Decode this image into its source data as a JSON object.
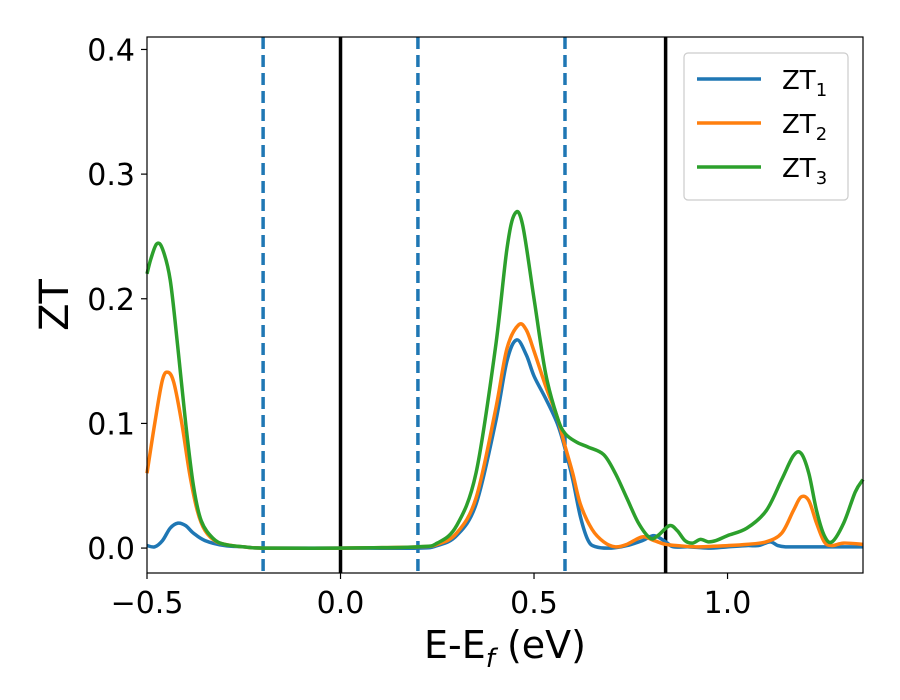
{
  "chart_data": {
    "type": "line",
    "xlabel": "E-E",
    "xlabel_subscript": "f",
    "xlabel_unit": " (eV)",
    "ylabel": "ZT",
    "xlim": [
      -0.5,
      1.35
    ],
    "ylim": [
      -0.02,
      0.41
    ],
    "xticks": [
      -0.5,
      0.0,
      0.5,
      1.0
    ],
    "xtick_labels": [
      "−0.5",
      "0.0",
      "0.5",
      "1.0"
    ],
    "yticks": [
      0.0,
      0.1,
      0.2,
      0.3,
      0.4
    ],
    "ytick_labels": [
      "0.0",
      "0.1",
      "0.2",
      "0.3",
      "0.4"
    ],
    "legend_position": "top-right",
    "grid": false,
    "vlines": [
      {
        "x": -0.2,
        "style": "dashed",
        "color": "#1f77b4"
      },
      {
        "x": 0.2,
        "style": "dashed",
        "color": "#1f77b4"
      },
      {
        "x": 0.58,
        "style": "dashed",
        "color": "#1f77b4"
      },
      {
        "x": 0.0,
        "style": "solid",
        "color": "#000000"
      },
      {
        "x": 0.84,
        "style": "solid",
        "color": "#000000"
      }
    ],
    "series": [
      {
        "name": "ZT",
        "subscript": "1",
        "color": "#1f77b4",
        "points": [
          [
            -0.5,
            0.002
          ],
          [
            -0.48,
            0.001
          ],
          [
            -0.46,
            0.006
          ],
          [
            -0.44,
            0.016
          ],
          [
            -0.42,
            0.02
          ],
          [
            -0.4,
            0.018
          ],
          [
            -0.38,
            0.012
          ],
          [
            -0.35,
            0.006
          ],
          [
            -0.3,
            0.002
          ],
          [
            -0.25,
            0.001
          ],
          [
            -0.2,
            0.0
          ],
          [
            0.0,
            0.0
          ],
          [
            0.2,
            0.0
          ],
          [
            0.25,
            0.002
          ],
          [
            0.3,
            0.01
          ],
          [
            0.35,
            0.035
          ],
          [
            0.4,
            0.1
          ],
          [
            0.43,
            0.15
          ],
          [
            0.455,
            0.167
          ],
          [
            0.48,
            0.155
          ],
          [
            0.5,
            0.138
          ],
          [
            0.53,
            0.12
          ],
          [
            0.56,
            0.1
          ],
          [
            0.58,
            0.08
          ],
          [
            0.6,
            0.055
          ],
          [
            0.62,
            0.025
          ],
          [
            0.64,
            0.006
          ],
          [
            0.66,
            0.001
          ],
          [
            0.7,
            0.0
          ],
          [
            0.74,
            0.002
          ],
          [
            0.78,
            0.006
          ],
          [
            0.81,
            0.01
          ],
          [
            0.84,
            0.005
          ],
          [
            0.86,
            0.001
          ],
          [
            0.9,
            0.001
          ],
          [
            0.95,
            0.0
          ],
          [
            1.0,
            0.001
          ],
          [
            1.05,
            0.002
          ],
          [
            1.08,
            0.002
          ],
          [
            1.11,
            0.005
          ],
          [
            1.13,
            0.002
          ],
          [
            1.15,
            0.001
          ],
          [
            1.2,
            0.001
          ],
          [
            1.25,
            0.001
          ],
          [
            1.35,
            0.001
          ]
        ]
      },
      {
        "name": "ZT",
        "subscript": "2",
        "color": "#ff7f0e",
        "points": [
          [
            -0.5,
            0.06
          ],
          [
            -0.48,
            0.1
          ],
          [
            -0.46,
            0.135
          ],
          [
            -0.445,
            0.141
          ],
          [
            -0.43,
            0.132
          ],
          [
            -0.41,
            0.1
          ],
          [
            -0.39,
            0.06
          ],
          [
            -0.37,
            0.03
          ],
          [
            -0.35,
            0.014
          ],
          [
            -0.32,
            0.005
          ],
          [
            -0.28,
            0.002
          ],
          [
            -0.25,
            0.001
          ],
          [
            -0.2,
            0.0
          ],
          [
            0.0,
            0.0
          ],
          [
            0.2,
            0.001
          ],
          [
            0.25,
            0.003
          ],
          [
            0.3,
            0.012
          ],
          [
            0.35,
            0.04
          ],
          [
            0.4,
            0.11
          ],
          [
            0.43,
            0.16
          ],
          [
            0.46,
            0.179
          ],
          [
            0.48,
            0.175
          ],
          [
            0.5,
            0.158
          ],
          [
            0.53,
            0.13
          ],
          [
            0.56,
            0.105
          ],
          [
            0.58,
            0.082
          ],
          [
            0.6,
            0.06
          ],
          [
            0.62,
            0.035
          ],
          [
            0.65,
            0.015
          ],
          [
            0.68,
            0.005
          ],
          [
            0.71,
            0.001
          ],
          [
            0.74,
            0.003
          ],
          [
            0.78,
            0.009
          ],
          [
            0.81,
            0.006
          ],
          [
            0.84,
            0.003
          ],
          [
            0.87,
            0.002
          ],
          [
            0.92,
            0.001
          ],
          [
            1.0,
            0.002
          ],
          [
            1.05,
            0.003
          ],
          [
            1.1,
            0.005
          ],
          [
            1.14,
            0.012
          ],
          [
            1.17,
            0.03
          ],
          [
            1.19,
            0.041
          ],
          [
            1.21,
            0.038
          ],
          [
            1.23,
            0.02
          ],
          [
            1.25,
            0.005
          ],
          [
            1.27,
            0.002
          ],
          [
            1.3,
            0.004
          ],
          [
            1.35,
            0.003
          ]
        ]
      },
      {
        "name": "ZT",
        "subscript": "3",
        "color": "#2ca02c",
        "points": [
          [
            -0.5,
            0.22
          ],
          [
            -0.49,
            0.232
          ],
          [
            -0.475,
            0.244
          ],
          [
            -0.46,
            0.24
          ],
          [
            -0.44,
            0.215
          ],
          [
            -0.42,
            0.16
          ],
          [
            -0.4,
            0.1
          ],
          [
            -0.38,
            0.05
          ],
          [
            -0.36,
            0.022
          ],
          [
            -0.33,
            0.008
          ],
          [
            -0.3,
            0.003
          ],
          [
            -0.25,
            0.001
          ],
          [
            -0.2,
            0.0
          ],
          [
            0.0,
            0.0
          ],
          [
            0.2,
            0.001
          ],
          [
            0.25,
            0.004
          ],
          [
            0.3,
            0.018
          ],
          [
            0.35,
            0.06
          ],
          [
            0.4,
            0.16
          ],
          [
            0.43,
            0.24
          ],
          [
            0.45,
            0.268
          ],
          [
            0.47,
            0.26
          ],
          [
            0.5,
            0.2
          ],
          [
            0.53,
            0.14
          ],
          [
            0.56,
            0.105
          ],
          [
            0.58,
            0.092
          ],
          [
            0.61,
            0.085
          ],
          [
            0.64,
            0.081
          ],
          [
            0.68,
            0.075
          ],
          [
            0.71,
            0.06
          ],
          [
            0.74,
            0.04
          ],
          [
            0.77,
            0.02
          ],
          [
            0.8,
            0.008
          ],
          [
            0.82,
            0.01
          ],
          [
            0.85,
            0.018
          ],
          [
            0.87,
            0.014
          ],
          [
            0.89,
            0.006
          ],
          [
            0.91,
            0.004
          ],
          [
            0.93,
            0.007
          ],
          [
            0.95,
            0.005
          ],
          [
            0.97,
            0.006
          ],
          [
            1.0,
            0.01
          ],
          [
            1.05,
            0.016
          ],
          [
            1.1,
            0.03
          ],
          [
            1.14,
            0.055
          ],
          [
            1.17,
            0.074
          ],
          [
            1.19,
            0.076
          ],
          [
            1.21,
            0.06
          ],
          [
            1.23,
            0.03
          ],
          [
            1.25,
            0.01
          ],
          [
            1.27,
            0.005
          ],
          [
            1.3,
            0.02
          ],
          [
            1.33,
            0.045
          ],
          [
            1.35,
            0.055
          ]
        ]
      }
    ]
  }
}
